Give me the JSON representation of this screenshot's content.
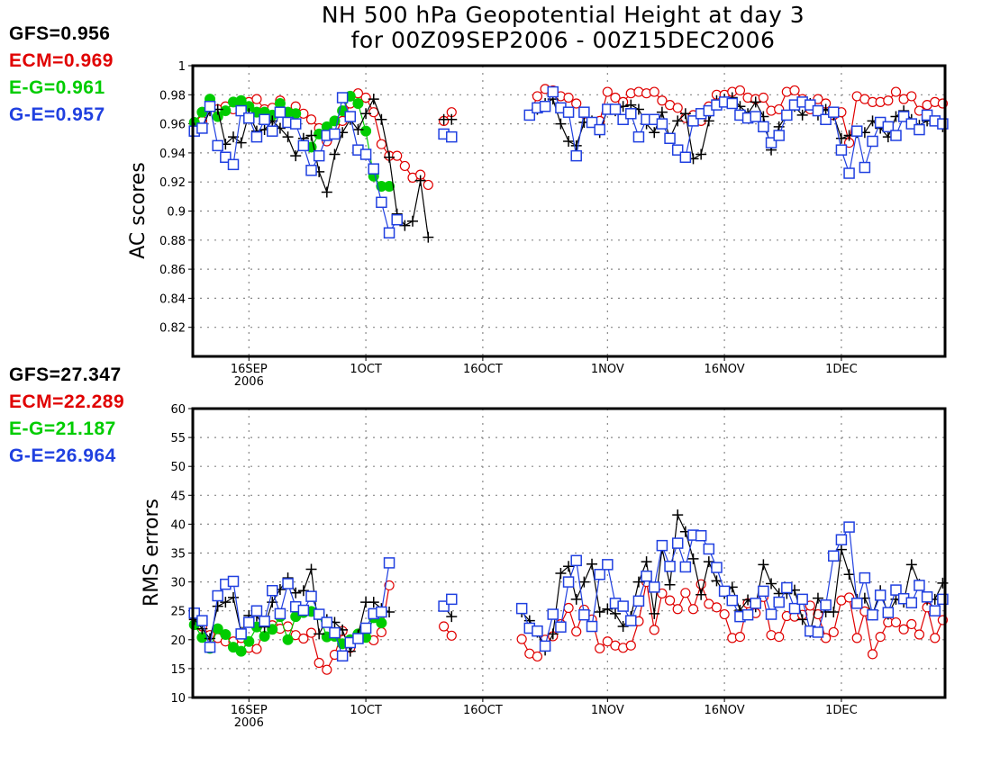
{
  "title": {
    "line1": "NH 500 hPa Geopotential Height at day 3",
    "line2": "for 00Z09SEP2006 - 00Z15DEC2006"
  },
  "colors": {
    "GFS": "#000000",
    "ECM": "#e00000",
    "E-G": "#00cc00",
    "G-E": "#2040e0"
  },
  "chart_data": [
    {
      "type": "line",
      "panel": "top",
      "title": "NH 500 hPa Geopotential Height at day 3",
      "ylabel": "AC scores",
      "xlabel": "",
      "ylim": [
        0.8,
        1.0
      ],
      "yticks": [
        "1",
        "0.98",
        "0.96",
        "0.94",
        "0.92",
        "0.9",
        "0.88",
        "0.86",
        "0.84",
        "0.82"
      ],
      "ytick_values": [
        1.0,
        0.98,
        0.96,
        0.94,
        0.92,
        0.9,
        0.88,
        0.86,
        0.84,
        0.82
      ],
      "xticks": [
        {
          "day": 7,
          "label": "16SEP",
          "sublabel": "2006"
        },
        {
          "day": 22,
          "label": "1OCT",
          "sublabel": ""
        },
        {
          "day": 37,
          "label": "16OCT",
          "sublabel": ""
        },
        {
          "day": 53,
          "label": "1NOV",
          "sublabel": ""
        },
        {
          "day": 68,
          "label": "16NOV",
          "sublabel": ""
        },
        {
          "day": 83,
          "label": "1DEC",
          "sublabel": ""
        }
      ],
      "xlim_days": [
        -0.2,
        96.3
      ],
      "x_start_date": "09SEP2006",
      "grid": true,
      "legend": [
        {
          "name": "GFS",
          "text": "GFS=0.956"
        },
        {
          "name": "ECM",
          "text": "ECM=0.969"
        },
        {
          "name": "E-G",
          "text": "E-G=0.961"
        },
        {
          "name": "G-E",
          "text": "G-E=0.957"
        }
      ],
      "series": [
        {
          "name": "GFS",
          "marker": "plus",
          "values": [
            0.957,
            0.957,
            0.969,
            0.97,
            0.946,
            0.951,
            0.947,
            0.967,
            0.955,
            0.956,
            0.962,
            0.957,
            0.951,
            0.938,
            0.95,
            0.952,
            0.927,
            0.913,
            0.939,
            0.954,
            0.963,
            0.956,
            0.967,
            0.977,
            0.963,
            0.937,
            0.898,
            0.89,
            0.893,
            0.921,
            0.882,
            null,
            0.963,
            0.963,
            null,
            null,
            null,
            null,
            null,
            null,
            null,
            null,
            null,
            0.966,
            0.97,
            0.974,
            0.977,
            0.96,
            0.948,
            0.945,
            0.961,
            0.962,
            0.954,
            0.97,
            0.969,
            0.972,
            0.973,
            0.97,
            0.96,
            0.954,
            0.968,
            0.95,
            0.962,
            0.967,
            0.936,
            0.939,
            0.962,
            0.976,
            0.977,
            0.978,
            0.972,
            0.967,
            0.975,
            0.965,
            0.942,
            0.958,
            0.966,
            0.972,
            0.966,
            0.974,
            0.966,
            0.97,
            0.966,
            0.95,
            0.952,
            0.954,
            0.954,
            0.962,
            0.957,
            0.951,
            0.965,
            0.969,
            0.963,
            0.959,
            0.962,
            0.962,
            0.958
          ]
        },
        {
          "name": "ECM",
          "marker": "circle",
          "values": [
            0.958,
            0.962,
            0.972,
            0.97,
            0.972,
            0.97,
            0.975,
            0.975,
            0.977,
            0.97,
            0.971,
            0.976,
            0.968,
            0.972,
            0.967,
            0.963,
            0.957,
            0.948,
            0.959,
            0.962,
            0.974,
            0.981,
            0.978,
            0.968,
            0.946,
            0.938,
            0.938,
            0.931,
            0.923,
            0.925,
            0.918,
            null,
            0.962,
            0.968,
            null,
            null,
            null,
            null,
            null,
            null,
            null,
            null,
            null,
            0.966,
            0.979,
            0.984,
            0.983,
            0.979,
            0.978,
            0.974,
            0.967,
            0.961,
            0.962,
            0.982,
            0.978,
            0.975,
            0.981,
            0.982,
            0.981,
            0.982,
            0.976,
            0.973,
            0.971,
            0.964,
            0.966,
            0.962,
            0.972,
            0.98,
            0.98,
            0.982,
            0.983,
            0.978,
            0.977,
            0.978,
            0.969,
            0.97,
            0.982,
            0.983,
            0.977,
            0.97,
            0.977,
            0.974,
            0.966,
            0.968,
            0.947,
            0.979,
            0.977,
            0.975,
            0.975,
            0.976,
            0.982,
            0.977,
            0.979,
            0.969,
            0.973,
            0.975,
            0.974
          ]
        },
        {
          "name": "E-G",
          "marker": "dot",
          "values": [
            0.961,
            0.968,
            0.977,
            0.965,
            0.969,
            0.975,
            0.976,
            0.972,
            0.968,
            0.968,
            0.966,
            0.974,
            0.968,
            0.967,
            null,
            0.944,
            0.953,
            0.958,
            0.962,
            0.969,
            0.979,
            0.974,
            0.955,
            0.924,
            0.917,
            0.917,
            null,
            null,
            null,
            null,
            null,
            null,
            null,
            null,
            null,
            null,
            null,
            null,
            null,
            null,
            null,
            null,
            null,
            null,
            null,
            null,
            null,
            null,
            null,
            null,
            null,
            null,
            null,
            null,
            null,
            null,
            null,
            null,
            null,
            null,
            null,
            null,
            null,
            null,
            null,
            null,
            null,
            null,
            null,
            null,
            null,
            null,
            null,
            null,
            null,
            null,
            null,
            null,
            null,
            null,
            null,
            null,
            null,
            null,
            null,
            null,
            null,
            null,
            null,
            null,
            null,
            null,
            null,
            null,
            null,
            null,
            null
          ]
        },
        {
          "name": "G-E",
          "marker": "square",
          "values": [
            0.955,
            0.957,
            0.972,
            0.945,
            0.937,
            0.932,
            0.969,
            0.964,
            0.951,
            0.963,
            0.955,
            0.968,
            0.961,
            0.96,
            0.945,
            0.928,
            0.938,
            0.952,
            0.953,
            0.978,
            0.965,
            0.942,
            0.939,
            0.929,
            0.906,
            0.885,
            0.894,
            null,
            null,
            null,
            null,
            null,
            0.953,
            0.951,
            null,
            null,
            null,
            null,
            null,
            null,
            null,
            null,
            null,
            0.966,
            0.971,
            0.972,
            0.982,
            0.971,
            0.968,
            0.938,
            0.968,
            0.961,
            0.956,
            0.97,
            0.97,
            0.963,
            0.967,
            0.951,
            0.963,
            0.963,
            0.96,
            0.95,
            0.942,
            0.937,
            0.962,
            0.967,
            0.969,
            0.973,
            0.975,
            0.974,
            0.966,
            0.964,
            0.965,
            0.958,
            0.947,
            0.952,
            0.966,
            0.973,
            0.975,
            0.973,
            0.969,
            0.963,
            0.968,
            0.942,
            0.926,
            0.955,
            0.93,
            0.948,
            0.961,
            0.958,
            0.952,
            0.965,
            0.96,
            0.956,
            0.966,
            0.962,
            0.96
          ]
        }
      ]
    },
    {
      "type": "line",
      "panel": "bottom",
      "title": "",
      "ylabel": "RMS errors",
      "xlabel": "",
      "ylim": [
        10,
        60
      ],
      "yticks": [
        "60",
        "55",
        "50",
        "45",
        "40",
        "35",
        "30",
        "25",
        "20",
        "15",
        "10"
      ],
      "ytick_values": [
        60,
        55,
        50,
        45,
        40,
        35,
        30,
        25,
        20,
        15,
        10
      ],
      "xticks": [
        {
          "day": 7,
          "label": "16SEP",
          "sublabel": "2006"
        },
        {
          "day": 22,
          "label": "1OCT",
          "sublabel": ""
        },
        {
          "day": 37,
          "label": "16OCT",
          "sublabel": ""
        },
        {
          "day": 53,
          "label": "1NOV",
          "sublabel": ""
        },
        {
          "day": 68,
          "label": "16NOV",
          "sublabel": ""
        },
        {
          "day": 83,
          "label": "1DEC",
          "sublabel": ""
        }
      ],
      "xlim_days": [
        -0.2,
        96.3
      ],
      "x_start_date": "09SEP2006",
      "grid": true,
      "legend": [
        {
          "name": "GFS",
          "text": "GFS=27.347"
        },
        {
          "name": "ECM",
          "text": "ECM=22.289"
        },
        {
          "name": "E-G",
          "text": "E-G=21.187"
        },
        {
          "name": "G-E",
          "text": "G-E=26.964"
        }
      ],
      "series": [
        {
          "name": "GFS",
          "marker": "plus",
          "values": [
            23.5,
            21.9,
            20.2,
            25.8,
            26.5,
            27.3,
            21.3,
            24.2,
            24.1,
            22.2,
            26.5,
            28.7,
            30.7,
            28.1,
            28.5,
            32.2,
            21.0,
            23.5,
            23.0,
            21.7,
            18.0,
            20.8,
            26.5,
            26.5,
            25.4,
            24.8,
            null,
            null,
            null,
            null,
            null,
            null,
            25.8,
            24.0,
            null,
            null,
            null,
            null,
            null,
            null,
            null,
            null,
            24.8,
            23.3,
            21.3,
            18.2,
            21.0,
            31.5,
            32.7,
            27.0,
            30.0,
            33.1,
            24.8,
            25.3,
            24.5,
            22.3,
            24.0,
            30.0,
            33.5,
            24.5,
            35.8,
            29.5,
            41.6,
            38.7,
            34.0,
            27.8,
            33.5,
            30.2,
            28.0,
            29.1,
            25.1,
            26.9,
            25.7,
            33.0,
            29.7,
            28.0,
            28.0,
            28.6,
            23.5,
            21.3,
            27.2,
            24.8,
            24.8,
            35.6,
            31.3,
            27.0,
            27.2,
            24.3,
            28.5,
            24.4,
            27.0,
            26.5,
            33.0,
            29.6,
            26.9,
            27.0,
            29.8
          ]
        },
        {
          "name": "ECM",
          "marker": "circle",
          "values": [
            22.6,
            22.3,
            20.8,
            20.3,
            19.7,
            19.7,
            20.3,
            18.6,
            18.4,
            21.8,
            22.5,
            21.9,
            22.3,
            20.8,
            20.2,
            21.2,
            16.0,
            14.8,
            17.4,
            21.5,
            18.6,
            20.9,
            20.5,
            19.9,
            21.3,
            29.4,
            null,
            null,
            null,
            null,
            null,
            null,
            22.3,
            20.7,
            null,
            null,
            null,
            null,
            null,
            null,
            null,
            null,
            20.1,
            17.6,
            17.1,
            20.0,
            20.6,
            22.7,
            25.5,
            21.4,
            25.2,
            23.5,
            18.5,
            19.7,
            19.0,
            18.6,
            19.0,
            23.2,
            30.0,
            21.7,
            28.0,
            26.8,
            25.3,
            28.1,
            25.3,
            29.6,
            26.2,
            25.6,
            24.4,
            20.3,
            20.5,
            26.3,
            24.6,
            27.4,
            20.8,
            20.5,
            24.1,
            24.0,
            24.3,
            25.9,
            24.4,
            20.3,
            21.3,
            26.8,
            27.3,
            20.3,
            24.9,
            17.5,
            20.5,
            23.0,
            23.0,
            21.8,
            22.7,
            20.9,
            25.6,
            20.3,
            23.4
          ]
        },
        {
          "name": "E-G",
          "marker": "dot",
          "values": [
            22.6,
            20.4,
            18.5,
            21.9,
            20.9,
            18.7,
            18.0,
            19.7,
            22.2,
            20.6,
            21.8,
            24.0,
            20.0,
            24.0,
            24.7,
            24.9,
            24.3,
            20.5,
            20.6,
            19.3,
            20.0,
            21.0,
            20.4,
            23.8,
            22.9,
            null,
            null,
            null,
            null,
            null,
            null,
            null,
            null,
            null,
            null,
            null,
            null,
            null,
            null,
            null,
            null,
            null,
            null,
            null,
            null,
            null,
            null,
            null,
            null,
            null,
            null,
            null,
            null,
            null,
            null,
            null,
            null,
            null,
            null,
            null,
            null,
            null,
            null,
            null,
            null,
            null,
            null,
            null,
            null,
            null,
            null,
            null,
            null,
            null,
            null,
            null,
            null,
            null,
            null,
            null,
            null,
            null,
            null,
            null,
            null,
            null,
            null,
            null,
            null,
            null,
            null,
            null,
            null,
            null,
            null,
            null,
            null
          ]
        },
        {
          "name": "G-E",
          "marker": "square",
          "values": [
            24.6,
            23.3,
            18.7,
            27.6,
            29.6,
            30.1,
            21.0,
            23.0,
            25.0,
            23.2,
            28.5,
            24.5,
            29.7,
            25.7,
            25.1,
            27.5,
            24.4,
            23.0,
            21.2,
            17.2,
            19.5,
            20.2,
            22.0,
            24.5,
            24.8,
            33.3,
            null,
            null,
            null,
            null,
            null,
            null,
            25.8,
            27.0,
            null,
            null,
            null,
            null,
            null,
            null,
            null,
            null,
            25.4,
            22.0,
            21.5,
            18.9,
            24.4,
            22.2,
            30.0,
            33.7,
            24.3,
            22.3,
            31.3,
            33.0,
            26.3,
            25.8,
            23.3,
            26.7,
            31.0,
            29.1,
            36.3,
            32.7,
            36.7,
            32.6,
            38.1,
            38.0,
            35.7,
            32.5,
            28.4,
            26.8,
            24.0,
            24.3,
            26.3,
            28.4,
            24.4,
            26.5,
            29.0,
            25.4,
            27.0,
            21.5,
            21.3,
            26.0,
            34.5,
            37.3,
            39.5,
            26.3,
            30.7,
            24.3,
            27.7,
            24.7,
            28.6,
            27.1,
            26.4,
            29.4,
            27.4,
            25.0,
            27.0
          ]
        }
      ]
    }
  ]
}
